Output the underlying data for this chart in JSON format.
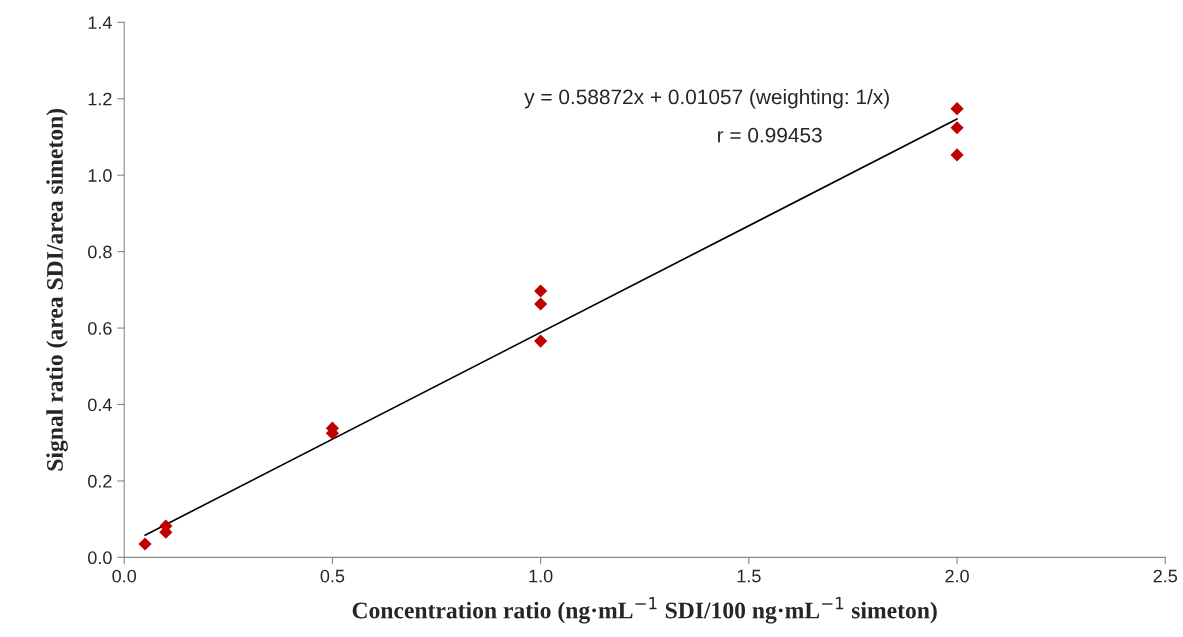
{
  "chart_data": {
    "type": "scatter",
    "xlabel": "Concentration ratio (ng·mL$^{−1}$ SDI/100 ng·mL$^{−1}$ simeton)",
    "ylabel": "Signal ratio (area SDI/area simeton)",
    "annotations": [
      "y = 0.58872x + 0.01057 (weighting: 1/x)",
      "r = 0.99453"
    ],
    "xlim": [
      0,
      2.5
    ],
    "xticks": [
      {
        "value": 0,
        "label": "0.0"
      },
      0.5,
      {
        "value": 1,
        "label": "1.0"
      },
      1.5,
      {
        "value": 2,
        "label": "2.0"
      },
      2.5
    ],
    "ylim": [
      0,
      1.4
    ],
    "yticks": [
      {
        "value": 0,
        "label": "0.0"
      },
      0.2,
      0.4,
      0.6,
      0.8,
      {
        "value": 1,
        "label": "1.0"
      },
      1.2,
      1.4
    ],
    "grid": false,
    "legend": false,
    "series": [
      {
        "marker": "diamond",
        "color": "#c00000",
        "x": [
          0.05,
          0.1,
          0.1,
          0.5,
          0.5,
          1.0,
          1.0,
          1.0,
          2.0,
          2.0,
          2.0
        ],
        "values": [
          0.035,
          0.082,
          0.066,
          0.338,
          0.325,
          0.697,
          0.663,
          0.566,
          1.174,
          1.124,
          1.053
        ]
      },
      {
        "type": "line",
        "color": "#000000",
        "x": [
          0.05,
          2.0
        ],
        "values": [
          0.058,
          1.147
        ],
        "line_style": "solid"
      }
    ]
  }
}
